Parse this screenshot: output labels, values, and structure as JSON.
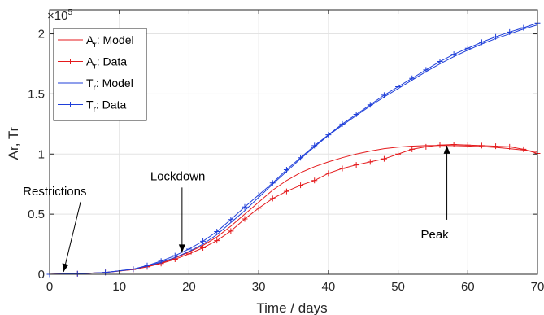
{
  "chart_data": {
    "type": "line",
    "xlabel": "Time / days",
    "ylabel": "Ar, Tr",
    "xlim": [
      0,
      70
    ],
    "ylim": [
      0,
      220000
    ],
    "x_ticks": [
      0,
      10,
      20,
      30,
      40,
      50,
      60,
      70
    ],
    "x_tick_labels": [
      "0",
      "10",
      "20",
      "30",
      "40",
      "50",
      "60",
      "70"
    ],
    "y_ticks": [
      0,
      50000,
      100000,
      150000,
      200000
    ],
    "y_tick_labels": [
      "0",
      "0.5",
      "1",
      "1.5",
      "2"
    ],
    "y_exponent_label": "×10",
    "y_exponent_power": "5",
    "grid": true,
    "legend_position": "top-left",
    "legend": [
      {
        "main": "A",
        "sub": "r",
        "rest": ": Model",
        "color": "#e41a1c",
        "marker": "none"
      },
      {
        "main": "A",
        "sub": "r",
        "rest": ": Data",
        "color": "#e41a1c",
        "marker": "+"
      },
      {
        "main": "T",
        "sub": "r",
        "rest": ": Model",
        "color": "#1f3fd9",
        "marker": "none"
      },
      {
        "main": "T",
        "sub": "r",
        "rest": ": Data",
        "color": "#1f3fd9",
        "marker": "+"
      }
    ],
    "series": [
      {
        "name": "Ar: Model",
        "color": "#e41a1c",
        "marker": "none",
        "x": [
          0,
          4,
          8,
          12,
          14,
          16,
          18,
          20,
          22,
          24,
          26,
          28,
          30,
          32,
          34,
          36,
          38,
          40,
          42,
          44,
          46,
          48,
          50,
          52,
          54,
          56,
          58,
          60,
          62,
          64,
          66,
          68,
          70
        ],
        "y": [
          0,
          500,
          1500,
          4000,
          6500,
          9500,
          13500,
          18500,
          24000,
          31000,
          40000,
          50000,
          60000,
          70000,
          78000,
          84500,
          89500,
          93500,
          97000,
          100000,
          102500,
          104500,
          105800,
          106600,
          107000,
          107100,
          107000,
          106700,
          106200,
          105500,
          104500,
          103300,
          102000
        ]
      },
      {
        "name": "Ar: Data",
        "color": "#e41a1c",
        "marker": "+",
        "x": [
          0,
          4,
          8,
          12,
          14,
          16,
          18,
          20,
          22,
          24,
          26,
          28,
          30,
          32,
          34,
          36,
          38,
          40,
          42,
          44,
          46,
          48,
          50,
          52,
          54,
          56,
          58,
          60,
          62,
          64,
          66,
          68,
          70
        ],
        "y": [
          0,
          500,
          1500,
          4000,
          6200,
          9000,
          12500,
          17000,
          22000,
          28000,
          36000,
          46000,
          55000,
          63000,
          69000,
          74000,
          78000,
          84000,
          88000,
          91000,
          93500,
          96000,
          100000,
          104000,
          106000,
          107500,
          108000,
          107500,
          107000,
          106500,
          106000,
          104000,
          100500
        ]
      },
      {
        "name": "Tr: Model",
        "color": "#1f3fd9",
        "marker": "none",
        "x": [
          0,
          4,
          8,
          12,
          14,
          16,
          18,
          20,
          22,
          24,
          26,
          28,
          30,
          32,
          34,
          36,
          38,
          40,
          42,
          44,
          46,
          48,
          50,
          52,
          54,
          56,
          58,
          60,
          62,
          64,
          66,
          68,
          70
        ],
        "y": [
          0,
          500,
          1500,
          4200,
          7000,
          10000,
          14000,
          19000,
          25000,
          33000,
          43000,
          53000,
          64000,
          75000,
          85500,
          96000,
          106000,
          115500,
          124000,
          132000,
          140000,
          147500,
          154500,
          161500,
          168500,
          175000,
          181000,
          186500,
          191500,
          196000,
          200000,
          204000,
          207500
        ]
      },
      {
        "name": "Tr: Data",
        "color": "#1f3fd9",
        "marker": "+",
        "x": [
          0,
          4,
          8,
          12,
          14,
          16,
          18,
          20,
          22,
          24,
          26,
          28,
          30,
          32,
          34,
          36,
          38,
          40,
          42,
          44,
          46,
          48,
          50,
          52,
          54,
          56,
          58,
          60,
          62,
          64,
          66,
          68,
          70
        ],
        "y": [
          0,
          500,
          1500,
          4300,
          7300,
          11000,
          15500,
          21000,
          27500,
          35500,
          45500,
          56000,
          66000,
          76000,
          87000,
          97000,
          107000,
          116000,
          125000,
          133000,
          141000,
          149000,
          156000,
          163000,
          170000,
          177000,
          183000,
          188000,
          193000,
          197500,
          201500,
          205000,
          209000
        ]
      }
    ],
    "annotations": [
      {
        "text": "Restrictions",
        "x": 2,
        "y": 0
      },
      {
        "text": "Lockdown",
        "x": 19,
        "y": 16000
      },
      {
        "text": "Peak",
        "x": 57,
        "y": 107000
      }
    ]
  }
}
